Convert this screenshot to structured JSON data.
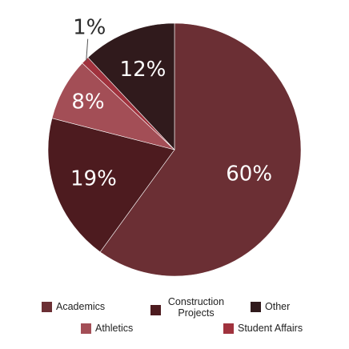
{
  "chart_data": {
    "type": "pie",
    "categories": [
      "Academics",
      "Construction Projects",
      "Athletics",
      "Student Affairs",
      "Other"
    ],
    "values": [
      60,
      19,
      8,
      1,
      12
    ],
    "labels": [
      "60%",
      "19%",
      "8%",
      "1%",
      "12%"
    ],
    "colors": [
      "#6b2f34",
      "#4d1b1f",
      "#a34e56",
      "#a0323d",
      "#301a1c"
    ],
    "legend_position": "bottom",
    "start_angle_deg": 0,
    "direction": "clockwise"
  },
  "legend": [
    {
      "label": "Academics",
      "color": "#6b2f34"
    },
    {
      "label": "Construction Projects",
      "color": "#4d1b1f"
    },
    {
      "label": "Other",
      "color": "#301a1c"
    },
    {
      "label": "Athletics",
      "color": "#a34e56"
    },
    {
      "label": "Student Affairs",
      "color": "#a0323d"
    }
  ]
}
